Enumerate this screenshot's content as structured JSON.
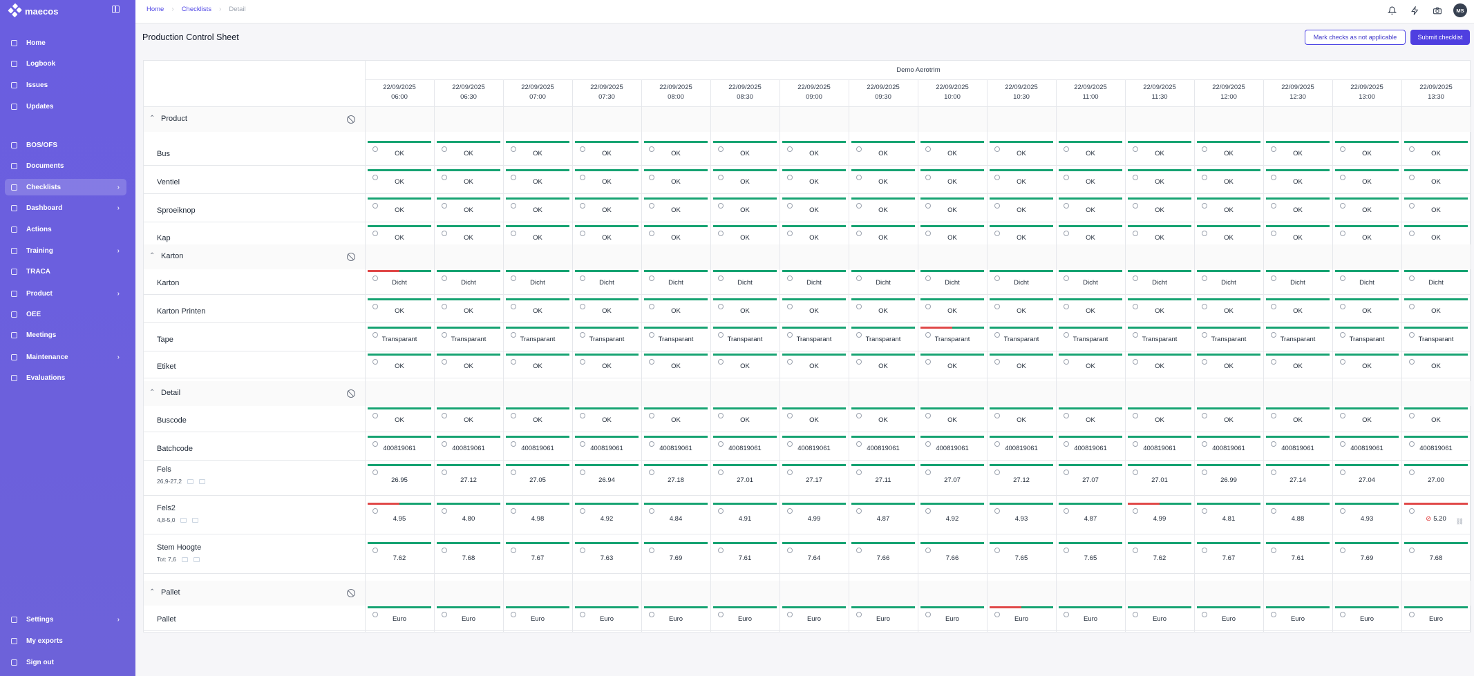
{
  "app": {
    "name": "maecos"
  },
  "nav": {
    "top": [
      {
        "label": "Home",
        "icon": "home-icon",
        "chevron": false
      },
      {
        "label": "Logbook",
        "icon": "clock-icon",
        "chevron": false
      },
      {
        "label": "Issues",
        "icon": "warning-icon",
        "chevron": false
      },
      {
        "label": "Updates",
        "icon": "megaphone-icon",
        "chevron": false
      },
      {
        "label": "BOS/OFS",
        "icon": "chart-icon",
        "chevron": false
      },
      {
        "label": "Documents",
        "icon": "document-icon",
        "chevron": false
      },
      {
        "label": "Checklists",
        "icon": "checklist-icon",
        "chevron": true
      },
      {
        "label": "Dashboard",
        "icon": "dashboard-icon",
        "chevron": true
      },
      {
        "label": "Actions",
        "icon": "check-circle-icon",
        "chevron": false
      },
      {
        "label": "Training",
        "icon": "graduation-icon",
        "chevron": true
      },
      {
        "label": "TRACA",
        "icon": "trace-icon",
        "chevron": false
      },
      {
        "label": "Product",
        "icon": "box-icon",
        "chevron": true
      },
      {
        "label": "OEE",
        "icon": "line-chart-icon",
        "chevron": false
      },
      {
        "label": "Meetings",
        "icon": "chat-icon",
        "chevron": false
      },
      {
        "label": "Maintenance",
        "icon": "wrench-icon",
        "chevron": true
      },
      {
        "label": "Evaluations",
        "icon": "star-icon",
        "chevron": false
      }
    ],
    "bottom": [
      {
        "label": "Settings",
        "icon": "gear-icon",
        "chevron": true
      },
      {
        "label": "My exports",
        "icon": "export-icon",
        "chevron": false
      },
      {
        "label": "Sign out",
        "icon": "sign-out-icon",
        "chevron": false
      }
    ],
    "active": "Checklists"
  },
  "breadcrumb": [
    "Home",
    "Checklists",
    "Detail"
  ],
  "user": {
    "initials": "MS"
  },
  "page": {
    "title": "Production Control Sheet",
    "btn_na": "Mark checks as not applicable",
    "btn_submit": "Submit checklist"
  },
  "sheet": {
    "group": "Demo Aerotrim",
    "columns": [
      {
        "date": "22/09/2025",
        "time": "06:00"
      },
      {
        "date": "22/09/2025",
        "time": "06:30"
      },
      {
        "date": "22/09/2025",
        "time": "07:00"
      },
      {
        "date": "22/09/2025",
        "time": "07:30"
      },
      {
        "date": "22/09/2025",
        "time": "08:00"
      },
      {
        "date": "22/09/2025",
        "time": "08:30"
      },
      {
        "date": "22/09/2025",
        "time": "09:00"
      },
      {
        "date": "22/09/2025",
        "time": "09:30"
      },
      {
        "date": "22/09/2025",
        "time": "10:00"
      },
      {
        "date": "22/09/2025",
        "time": "10:30"
      },
      {
        "date": "22/09/2025",
        "time": "11:00"
      },
      {
        "date": "22/09/2025",
        "time": "11:30"
      },
      {
        "date": "22/09/2025",
        "time": "12:00"
      },
      {
        "date": "22/09/2025",
        "time": "12:30"
      },
      {
        "date": "22/09/2025",
        "time": "13:00"
      },
      {
        "date": "22/09/2025",
        "time": "13:30"
      }
    ],
    "sections": [
      {
        "title": "Product",
        "rows": [
          {
            "label": "Bus",
            "values": [
              "OK",
              "OK",
              "OK",
              "OK",
              "OK",
              "OK",
              "OK",
              "OK",
              "OK",
              "OK",
              "OK",
              "OK",
              "OK",
              "OK",
              "OK",
              "OK"
            ]
          },
          {
            "label": "Ventiel",
            "values": [
              "OK",
              "OK",
              "OK",
              "OK",
              "OK",
              "OK",
              "OK",
              "OK",
              "OK",
              "OK",
              "OK",
              "OK",
              "OK",
              "OK",
              "OK",
              "OK"
            ]
          },
          {
            "label": "Sproeiknop",
            "values": [
              "OK",
              "OK",
              "OK",
              "OK",
              "OK",
              "OK",
              "OK",
              "OK",
              "OK",
              "OK",
              "OK",
              "OK",
              "OK",
              "OK",
              "OK",
              "OK"
            ]
          },
          {
            "label": "Kap",
            "values": [
              "OK",
              "OK",
              "OK",
              "OK",
              "OK",
              "OK",
              "OK",
              "OK",
              "OK",
              "OK",
              "OK",
              "OK",
              "OK",
              "OK",
              "OK",
              "OK"
            ]
          }
        ]
      },
      {
        "title": "Karton",
        "rows": [
          {
            "label": "Karton",
            "values": [
              "Dicht",
              "Dicht",
              "Dicht",
              "Dicht",
              "Dicht",
              "Dicht",
              "Dicht",
              "Dicht",
              "Dicht",
              "Dicht",
              "Dicht",
              "Dicht",
              "Dicht",
              "Dicht",
              "Dicht",
              "Dicht"
            ],
            "red": [
              0
            ]
          },
          {
            "label": "Karton Printen",
            "values": [
              "OK",
              "OK",
              "OK",
              "OK",
              "OK",
              "OK",
              "OK",
              "OK",
              "OK",
              "OK",
              "OK",
              "OK",
              "OK",
              "OK",
              "OK",
              "OK"
            ]
          },
          {
            "label": "Tape",
            "values": [
              "Transparant",
              "Transparant",
              "Transparant",
              "Transparant",
              "Transparant",
              "Transparant",
              "Transparant",
              "Transparant",
              "Transparant",
              "Transparant",
              "Transparant",
              "Transparant",
              "Transparant",
              "Transparant",
              "Transparant",
              "Transparant"
            ],
            "red": [
              8
            ]
          },
          {
            "label": "Etiket",
            "values": [
              "OK",
              "OK",
              "OK",
              "OK",
              "OK",
              "OK",
              "OK",
              "OK",
              "OK",
              "OK",
              "OK",
              "OK",
              "OK",
              "OK",
              "OK",
              "OK"
            ]
          }
        ]
      },
      {
        "title": "Detail",
        "rows": [
          {
            "label": "Buscode",
            "values": [
              "OK",
              "OK",
              "OK",
              "OK",
              "OK",
              "OK",
              "OK",
              "OK",
              "OK",
              "OK",
              "OK",
              "OK",
              "OK",
              "OK",
              "OK",
              "OK"
            ]
          },
          {
            "label": "Batchcode",
            "values": [
              "400819061",
              "400819061",
              "400819061",
              "400819061",
              "400819061",
              "400819061",
              "400819061",
              "400819061",
              "400819061",
              "400819061",
              "400819061",
              "400819061",
              "400819061",
              "400819061",
              "400819061",
              "400819061"
            ]
          },
          {
            "label": "Fels",
            "sub": "26,9-27,2",
            "values": [
              "26.95",
              "27.12",
              "27.05",
              "26.94",
              "27.18",
              "27.01",
              "27.17",
              "27.11",
              "27.07",
              "27.12",
              "27.07",
              "27.01",
              "26.99",
              "27.14",
              "27.04",
              "27.00"
            ]
          },
          {
            "label": "Fels2",
            "sub": "4,8-5,0",
            "values": [
              "4.95",
              "4.80",
              "4.98",
              "4.92",
              "4.84",
              "4.91",
              "4.99",
              "4.87",
              "4.92",
              "4.93",
              "4.87",
              "4.99",
              "4.81",
              "4.88",
              "4.93",
              "5.20"
            ],
            "red": [
              0,
              11
            ],
            "redfull": [
              15
            ],
            "warn": [
              15
            ]
          },
          {
            "label": "Stem Hoogte",
            "sub": "Tot: 7,6",
            "values": [
              "7.62",
              "7.68",
              "7.67",
              "7.63",
              "7.69",
              "7.61",
              "7.64",
              "7.66",
              "7.66",
              "7.65",
              "7.65",
              "7.62",
              "7.67",
              "7.61",
              "7.69",
              "7.68"
            ]
          }
        ]
      },
      {
        "title": "Pallet",
        "rows": [
          {
            "label": "Pallet",
            "values": [
              "Euro",
              "Euro",
              "Euro",
              "Euro",
              "Euro",
              "Euro",
              "Euro",
              "Euro",
              "Euro",
              "Euro",
              "Euro",
              "Euro",
              "Euro",
              "Euro",
              "Euro",
              "Euro"
            ],
            "red": [
              9
            ]
          }
        ]
      }
    ]
  }
}
